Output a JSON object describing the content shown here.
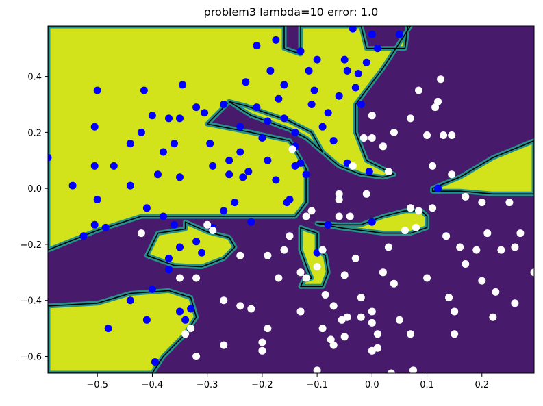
{
  "chart_data": {
    "type": "scatter",
    "title": "problem3 lambda=10 error: 1.0",
    "xlabel": "",
    "ylabel": "",
    "xlim": [
      -0.59,
      0.295
    ],
    "ylim": [
      -0.66,
      0.58
    ],
    "x_ticks": [
      -0.5,
      -0.4,
      -0.3,
      -0.2,
      -0.1,
      0.0,
      0.1,
      0.2
    ],
    "x_tick_labels": [
      "−0.5",
      "−0.4",
      "−0.3",
      "−0.2",
      "−0.1",
      "0.0",
      "0.1",
      "0.2"
    ],
    "y_ticks": [
      -0.6,
      -0.4,
      -0.2,
      0.0,
      0.2,
      0.4
    ],
    "y_tick_labels": [
      "−0.6",
      "−0.4",
      "−0.2",
      "0.0",
      "0.2",
      "0.4"
    ],
    "grid": false,
    "legend": "none",
    "colors": {
      "region_positive": "#d2e21b",
      "region_negative": "#481a6c",
      "region_edge": "#26918c",
      "boundary": "#000000",
      "class_positive": "#0000ff",
      "class_negative": "#ffffff"
    },
    "decision_regions_positive": [
      [
        [
          -0.59,
          0.58
        ],
        [
          -0.16,
          0.58
        ],
        [
          -0.16,
          0.5
        ],
        [
          -0.13,
          0.48
        ],
        [
          -0.13,
          0.58
        ],
        [
          -0.02,
          0.58
        ],
        [
          -0.01,
          0.5
        ],
        [
          0.06,
          0.5
        ],
        [
          0.065,
          0.58
        ],
        [
          0.07,
          0.58
        ],
        [
          0.02,
          0.43
        ],
        [
          -0.03,
          0.3
        ],
        [
          -0.03,
          0.2
        ],
        [
          -0.01,
          0.1
        ],
        [
          0.02,
          0.07
        ],
        [
          0.04,
          0.05
        ],
        [
          0.02,
          0.04
        ],
        [
          -0.02,
          0.05
        ],
        [
          -0.06,
          0.08
        ],
        [
          -0.09,
          0.13
        ],
        [
          -0.12,
          0.2
        ],
        [
          -0.2,
          0.27
        ],
        [
          -0.26,
          0.31
        ],
        [
          -0.3,
          0.23
        ],
        [
          -0.22,
          0.2
        ],
        [
          -0.15,
          0.17
        ],
        [
          -0.12,
          0.07
        ],
        [
          -0.12,
          -0.05
        ],
        [
          -0.14,
          -0.1
        ],
        [
          -0.32,
          -0.1
        ],
        [
          -0.42,
          -0.1
        ],
        [
          -0.5,
          -0.15
        ],
        [
          -0.59,
          -0.22
        ]
      ],
      [
        [
          -0.26,
          0.31
        ],
        [
          -0.23,
          0.295
        ],
        [
          -0.15,
          0.24
        ],
        [
          -0.11,
          0.2
        ],
        [
          -0.09,
          0.13
        ],
        [
          -0.12,
          0.18
        ],
        [
          -0.15,
          0.21
        ],
        [
          -0.22,
          0.26
        ]
      ],
      [
        [
          -0.41,
          -0.24
        ],
        [
          -0.39,
          -0.16
        ],
        [
          -0.34,
          -0.145
        ],
        [
          -0.34,
          -0.12
        ],
        [
          -0.3,
          -0.155
        ],
        [
          -0.26,
          -0.175
        ],
        [
          -0.25,
          -0.21
        ],
        [
          -0.27,
          -0.25
        ],
        [
          -0.31,
          -0.28
        ],
        [
          -0.36,
          -0.275
        ]
      ],
      [
        [
          -0.59,
          -0.42
        ],
        [
          -0.5,
          -0.41
        ],
        [
          -0.44,
          -0.375
        ],
        [
          -0.37,
          -0.365
        ],
        [
          -0.33,
          -0.39
        ],
        [
          -0.32,
          -0.46
        ],
        [
          -0.34,
          -0.52
        ],
        [
          -0.38,
          -0.6
        ],
        [
          -0.4,
          -0.66
        ],
        [
          -0.59,
          -0.66
        ]
      ],
      [
        [
          -0.13,
          -0.14
        ],
        [
          -0.13,
          -0.22
        ],
        [
          -0.115,
          -0.3
        ],
        [
          -0.11,
          -0.32
        ],
        [
          -0.125,
          -0.33
        ],
        [
          -0.13,
          -0.35
        ],
        [
          -0.09,
          -0.35
        ],
        [
          -0.08,
          -0.3
        ],
        [
          -0.085,
          -0.24
        ],
        [
          -0.1,
          -0.22
        ],
        [
          -0.1,
          -0.16
        ]
      ],
      [
        [
          -0.1,
          -0.125
        ],
        [
          -0.06,
          -0.13
        ],
        [
          -0.02,
          -0.13
        ],
        [
          0.02,
          -0.1
        ],
        [
          0.06,
          -0.08
        ],
        [
          0.09,
          -0.08
        ],
        [
          0.1,
          -0.1
        ],
        [
          0.1,
          -0.14
        ],
        [
          0.07,
          -0.16
        ],
        [
          0.02,
          -0.16
        ],
        [
          -0.02,
          -0.15
        ],
        [
          -0.06,
          -0.14
        ]
      ],
      [
        [
          0.11,
          0.0
        ],
        [
          0.16,
          0.04
        ],
        [
          0.22,
          0.11
        ],
        [
          0.295,
          0.17
        ],
        [
          0.295,
          -0.02
        ],
        [
          0.22,
          -0.02
        ],
        [
          0.16,
          -0.01
        ],
        [
          0.11,
          -0.01
        ]
      ]
    ],
    "series": [
      {
        "color": "#0000ff",
        "points": [
          [
            -0.59,
            0.11
          ],
          [
            -0.545,
            0.01
          ],
          [
            -0.525,
            -0.17
          ],
          [
            -0.505,
            -0.13
          ],
          [
            -0.505,
            0.22
          ],
          [
            -0.5,
            0.35
          ],
          [
            -0.5,
            -0.04
          ],
          [
            -0.505,
            0.08
          ],
          [
            -0.48,
            -0.5
          ],
          [
            -0.47,
            0.08
          ],
          [
            -0.485,
            -0.14
          ],
          [
            -0.44,
            0.16
          ],
          [
            -0.44,
            -0.4
          ],
          [
            -0.44,
            0.01
          ],
          [
            -0.42,
            0.2
          ],
          [
            -0.415,
            0.35
          ],
          [
            -0.41,
            -0.07
          ],
          [
            -0.41,
            -0.47
          ],
          [
            -0.4,
            0.26
          ],
          [
            -0.395,
            -0.62
          ],
          [
            -0.4,
            -0.36
          ],
          [
            -0.39,
            0.05
          ],
          [
            -0.38,
            -0.1
          ],
          [
            -0.38,
            0.13
          ],
          [
            -0.37,
            0.25
          ],
          [
            -0.37,
            -0.29
          ],
          [
            -0.37,
            -0.25
          ],
          [
            -0.36,
            0.16
          ],
          [
            -0.36,
            -0.13
          ],
          [
            -0.345,
            0.37
          ],
          [
            -0.35,
            0.25
          ],
          [
            -0.35,
            0.04
          ],
          [
            -0.35,
            -0.21
          ],
          [
            -0.35,
            -0.44
          ],
          [
            -0.34,
            -0.47
          ],
          [
            -0.32,
            0.29
          ],
          [
            -0.33,
            -0.43
          ],
          [
            -0.32,
            -0.19
          ],
          [
            -0.31,
            -0.23
          ],
          [
            -0.305,
            0.27
          ],
          [
            -0.3,
            -0.13
          ],
          [
            -0.295,
            0.16
          ],
          [
            -0.29,
            0.08
          ],
          [
            -0.29,
            -0.14
          ],
          [
            -0.27,
            -0.08
          ],
          [
            -0.27,
            0.3
          ],
          [
            -0.26,
            0.1
          ],
          [
            -0.26,
            0.05
          ],
          [
            -0.25,
            -0.05
          ],
          [
            -0.24,
            0.22
          ],
          [
            -0.24,
            0.13
          ],
          [
            -0.235,
            0.04
          ],
          [
            -0.23,
            0.38
          ],
          [
            -0.225,
            0.06
          ],
          [
            -0.22,
            -0.12
          ],
          [
            -0.21,
            0.29
          ],
          [
            -0.2,
            0.18
          ],
          [
            -0.19,
            0.24
          ],
          [
            -0.19,
            0.1
          ],
          [
            -0.175,
            0.03
          ],
          [
            -0.17,
            0.32
          ],
          [
            -0.16,
            0.25
          ],
          [
            -0.155,
            -0.05
          ],
          [
            -0.15,
            -0.04
          ],
          [
            -0.14,
            0.2
          ],
          [
            -0.14,
            0.08
          ],
          [
            -0.13,
            0.09
          ],
          [
            -0.12,
            0.05
          ],
          [
            -0.115,
            0.42
          ],
          [
            -0.11,
            0.3
          ],
          [
            -0.105,
            0.35
          ],
          [
            -0.1,
            0.46
          ],
          [
            -0.09,
            0.22
          ],
          [
            -0.08,
            0.27
          ],
          [
            -0.08,
            -0.13
          ],
          [
            -0.07,
            0.17
          ],
          [
            -0.06,
            0.33
          ],
          [
            -0.05,
            0.46
          ],
          [
            -0.045,
            0.09
          ],
          [
            -0.045,
            0.42
          ],
          [
            -0.035,
            0.57
          ],
          [
            -0.03,
            0.36
          ],
          [
            -0.025,
            0.41
          ],
          [
            -0.02,
            0.3
          ],
          [
            -0.01,
            0.45
          ],
          [
            -0.005,
            0.06
          ],
          [
            0.0,
            0.55
          ],
          [
            0.01,
            0.5
          ],
          [
            0.05,
            0.55
          ],
          [
            -0.1,
            -0.23
          ],
          [
            -0.14,
            0.15
          ],
          [
            -0.21,
            0.51
          ],
          [
            -0.185,
            0.42
          ],
          [
            -0.175,
            0.53
          ],
          [
            -0.16,
            0.37
          ],
          [
            -0.13,
            0.49
          ],
          [
            0.0,
            -0.12
          ],
          [
            0.12,
            0.0
          ]
        ]
      },
      {
        "color": "#ffffff",
        "points": [
          [
            -0.42,
            -0.16
          ],
          [
            -0.35,
            -0.32
          ],
          [
            -0.32,
            -0.32
          ],
          [
            -0.33,
            -0.5
          ],
          [
            -0.34,
            -0.52
          ],
          [
            -0.32,
            -0.6
          ],
          [
            -0.3,
            -0.13
          ],
          [
            -0.29,
            -0.15
          ],
          [
            -0.27,
            -0.4
          ],
          [
            -0.27,
            -0.56
          ],
          [
            -0.24,
            -0.24
          ],
          [
            -0.24,
            -0.42
          ],
          [
            -0.22,
            -0.43
          ],
          [
            -0.2,
            -0.58
          ],
          [
            -0.2,
            -0.55
          ],
          [
            -0.19,
            -0.24
          ],
          [
            -0.19,
            -0.5
          ],
          [
            -0.17,
            -0.32
          ],
          [
            -0.16,
            -0.22
          ],
          [
            -0.15,
            -0.17
          ],
          [
            -0.145,
            0.14
          ],
          [
            -0.13,
            -0.44
          ],
          [
            -0.13,
            -0.3
          ],
          [
            -0.12,
            -0.32
          ],
          [
            -0.11,
            -0.08
          ],
          [
            -0.1,
            -0.28
          ],
          [
            -0.1,
            -0.65
          ],
          [
            -0.09,
            -0.5
          ],
          [
            -0.085,
            -0.38
          ],
          [
            -0.075,
            -0.54
          ],
          [
            -0.07,
            -0.42
          ],
          [
            -0.07,
            -0.56
          ],
          [
            -0.06,
            -0.02
          ],
          [
            -0.06,
            -0.04
          ],
          [
            -0.055,
            -0.47
          ],
          [
            -0.05,
            -0.53
          ],
          [
            -0.05,
            -0.31
          ],
          [
            -0.04,
            -0.1
          ],
          [
            -0.035,
            0.08
          ],
          [
            -0.03,
            -0.25
          ],
          [
            -0.02,
            -0.46
          ],
          [
            -0.02,
            -0.39
          ],
          [
            -0.015,
            0.18
          ],
          [
            -0.01,
            -0.02
          ],
          [
            0.0,
            -0.44
          ],
          [
            0.0,
            -0.48
          ],
          [
            0.0,
            0.26
          ],
          [
            0.01,
            -0.52
          ],
          [
            0.01,
            -0.57
          ],
          [
            0.02,
            0.15
          ],
          [
            0.02,
            -0.3
          ],
          [
            0.03,
            -0.21
          ],
          [
            0.03,
            0.06
          ],
          [
            0.04,
            -0.34
          ],
          [
            0.04,
            0.2
          ],
          [
            0.05,
            -0.47
          ],
          [
            0.06,
            -0.15
          ],
          [
            0.07,
            -0.52
          ],
          [
            0.07,
            0.25
          ],
          [
            0.07,
            -0.07
          ],
          [
            0.08,
            -0.14
          ],
          [
            0.085,
            0.35
          ],
          [
            0.085,
            -0.08
          ],
          [
            0.1,
            0.19
          ],
          [
            0.1,
            -0.32
          ],
          [
            0.11,
            -0.07
          ],
          [
            0.11,
            0.08
          ],
          [
            0.115,
            0.29
          ],
          [
            0.12,
            0.31
          ],
          [
            0.125,
            0.39
          ],
          [
            0.13,
            0.19
          ],
          [
            0.135,
            -0.17
          ],
          [
            0.14,
            -0.39
          ],
          [
            0.15,
            -0.44
          ],
          [
            0.15,
            -0.52
          ],
          [
            0.16,
            -0.21
          ],
          [
            0.17,
            -0.03
          ],
          [
            0.17,
            -0.27
          ],
          [
            0.19,
            -0.22
          ],
          [
            0.2,
            -0.33
          ],
          [
            0.2,
            -0.05
          ],
          [
            0.21,
            -0.16
          ],
          [
            0.22,
            -0.46
          ],
          [
            0.225,
            -0.37
          ],
          [
            0.235,
            -0.22
          ],
          [
            0.26,
            -0.21
          ],
          [
            0.26,
            -0.41
          ],
          [
            0.27,
            -0.16
          ],
          [
            0.295,
            -0.3
          ],
          [
            0.25,
            -0.05
          ],
          [
            0.145,
            0.19
          ],
          [
            0.145,
            0.05
          ],
          [
            0.075,
            -0.65
          ],
          [
            0.035,
            -0.66
          ],
          [
            0.0,
            -0.58
          ],
          [
            -0.045,
            -0.46
          ],
          [
            -0.09,
            -0.22
          ],
          [
            -0.12,
            -0.1
          ],
          [
            -0.06,
            -0.1
          ],
          [
            0.0,
            0.18
          ]
        ]
      }
    ]
  }
}
